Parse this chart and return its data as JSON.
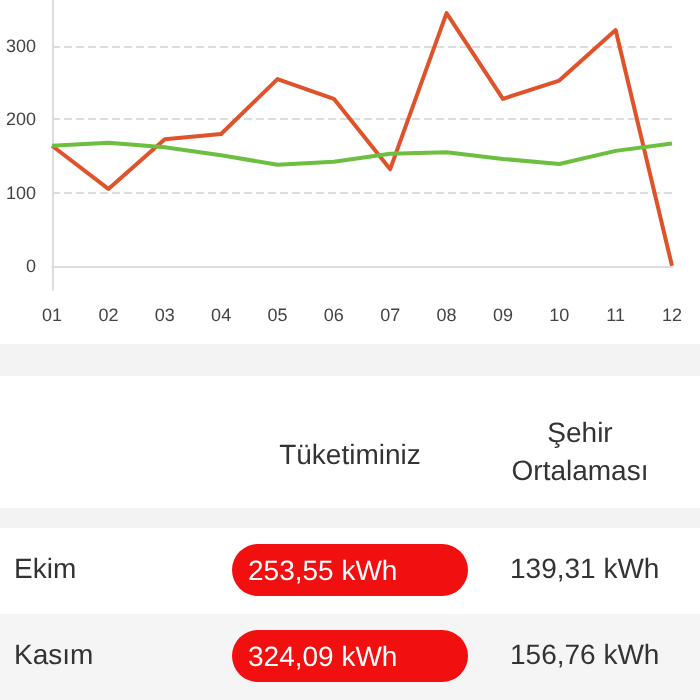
{
  "chart_data": [
    {
      "type": "line",
      "categories": [
        "01",
        "02",
        "03",
        "04",
        "05",
        "06",
        "07",
        "08",
        "09",
        "10",
        "11",
        "12"
      ],
      "series": [
        {
          "color": "#e0522a",
          "values": [
            164,
            105,
            173,
            180,
            255,
            228,
            132,
            345,
            228,
            253,
            322,
            0
          ]
        },
        {
          "color": "#6cbf3f",
          "values": [
            164,
            168,
            162,
            151,
            138,
            142,
            153,
            155,
            146,
            139,
            157,
            167
          ]
        }
      ],
      "ylim": [
        -33,
        363
      ],
      "yticks": [
        0,
        100,
        200,
        300
      ],
      "grid": "y",
      "marker": "none",
      "line_style": "solid"
    },
    {
      "type": "other",
      "annotations": [
        "Tüketiminiz",
        "Şehir Ortalaması",
        "Ekim",
        "253,55 kWh",
        "139,31 kWh",
        "Kasım",
        "324,09 kWh",
        "156,76 kWh"
      ]
    }
  ]
}
